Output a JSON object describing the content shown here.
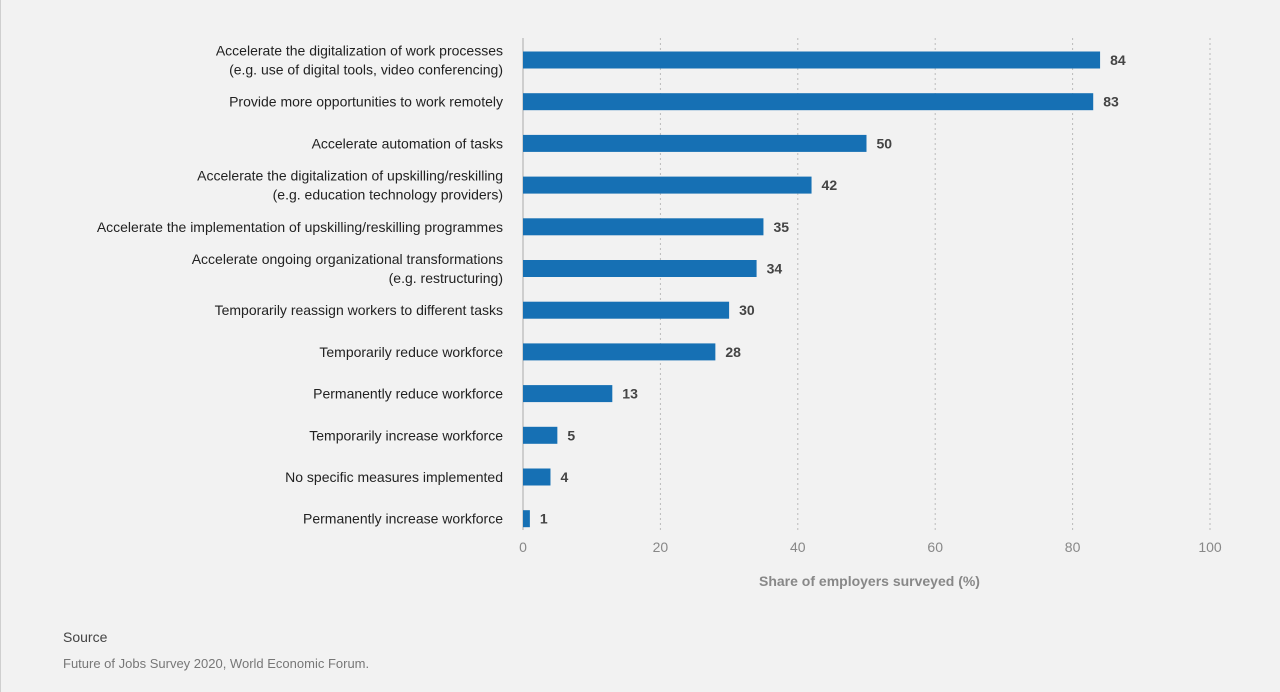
{
  "chart_data": {
    "type": "bar",
    "orientation": "horizontal",
    "categories": [
      [
        "Accelerate the digitalization of work processes",
        "(e.g. use of digital tools, video conferencing)"
      ],
      [
        "Provide more opportunities to work remotely"
      ],
      [
        "Accelerate automation of tasks"
      ],
      [
        "Accelerate the digitalization of upskilling/reskilling",
        "(e.g. education technology providers)"
      ],
      [
        "Accelerate the implementation of upskilling/reskilling programmes"
      ],
      [
        "Accelerate ongoing organizational transformations",
        "(e.g. restructuring)"
      ],
      [
        "Temporarily reassign workers to different tasks"
      ],
      [
        "Temporarily reduce workforce"
      ],
      [
        "Permanently reduce workforce"
      ],
      [
        "Temporarily increase workforce"
      ],
      [
        "No specific measures implemented"
      ],
      [
        "Permanently increase workforce"
      ]
    ],
    "values": [
      84,
      83,
      50,
      42,
      35,
      34,
      30,
      28,
      13,
      5,
      4,
      1
    ],
    "xlabel": "Share of employers surveyed (%)",
    "xlim": [
      0,
      100
    ],
    "xticks": [
      0,
      20,
      40,
      60,
      80,
      100
    ],
    "grid": "vertical dotted",
    "bar_color": "#1670b4"
  },
  "source": {
    "title": "Source",
    "text": "Future of Jobs Survey 2020, World Economic Forum."
  }
}
